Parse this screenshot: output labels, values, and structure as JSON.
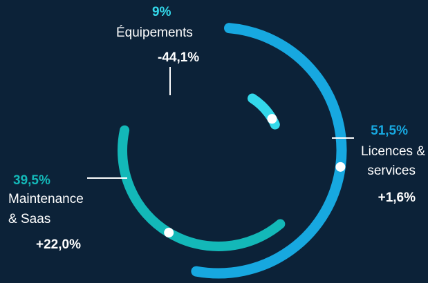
{
  "chart_data": {
    "type": "radial-bar",
    "segments": [
      {
        "name": "Licences & services",
        "name_lines": [
          "Licences &",
          "services"
        ],
        "share": "51,5%",
        "share_value": 51.5,
        "change": "+1,6%",
        "change_value": 1.6,
        "color": "#17a8e0"
      },
      {
        "name": "Maintenance & Saas",
        "name_lines": [
          "Maintenance",
          "& Saas"
        ],
        "share": "39,5%",
        "share_value": 39.5,
        "change": "+22,0%",
        "change_value": 22.0,
        "color": "#13b8b8"
      },
      {
        "name": "Équipements",
        "name_lines": [
          "Équipements"
        ],
        "share": "9%",
        "share_value": 9,
        "change": "-44,1%",
        "change_value": -44.1,
        "color": "#33d8ea"
      }
    ]
  },
  "colors": {
    "background": "#0c2238",
    "leader": "#ffffff",
    "marker": "#ffffff"
  }
}
